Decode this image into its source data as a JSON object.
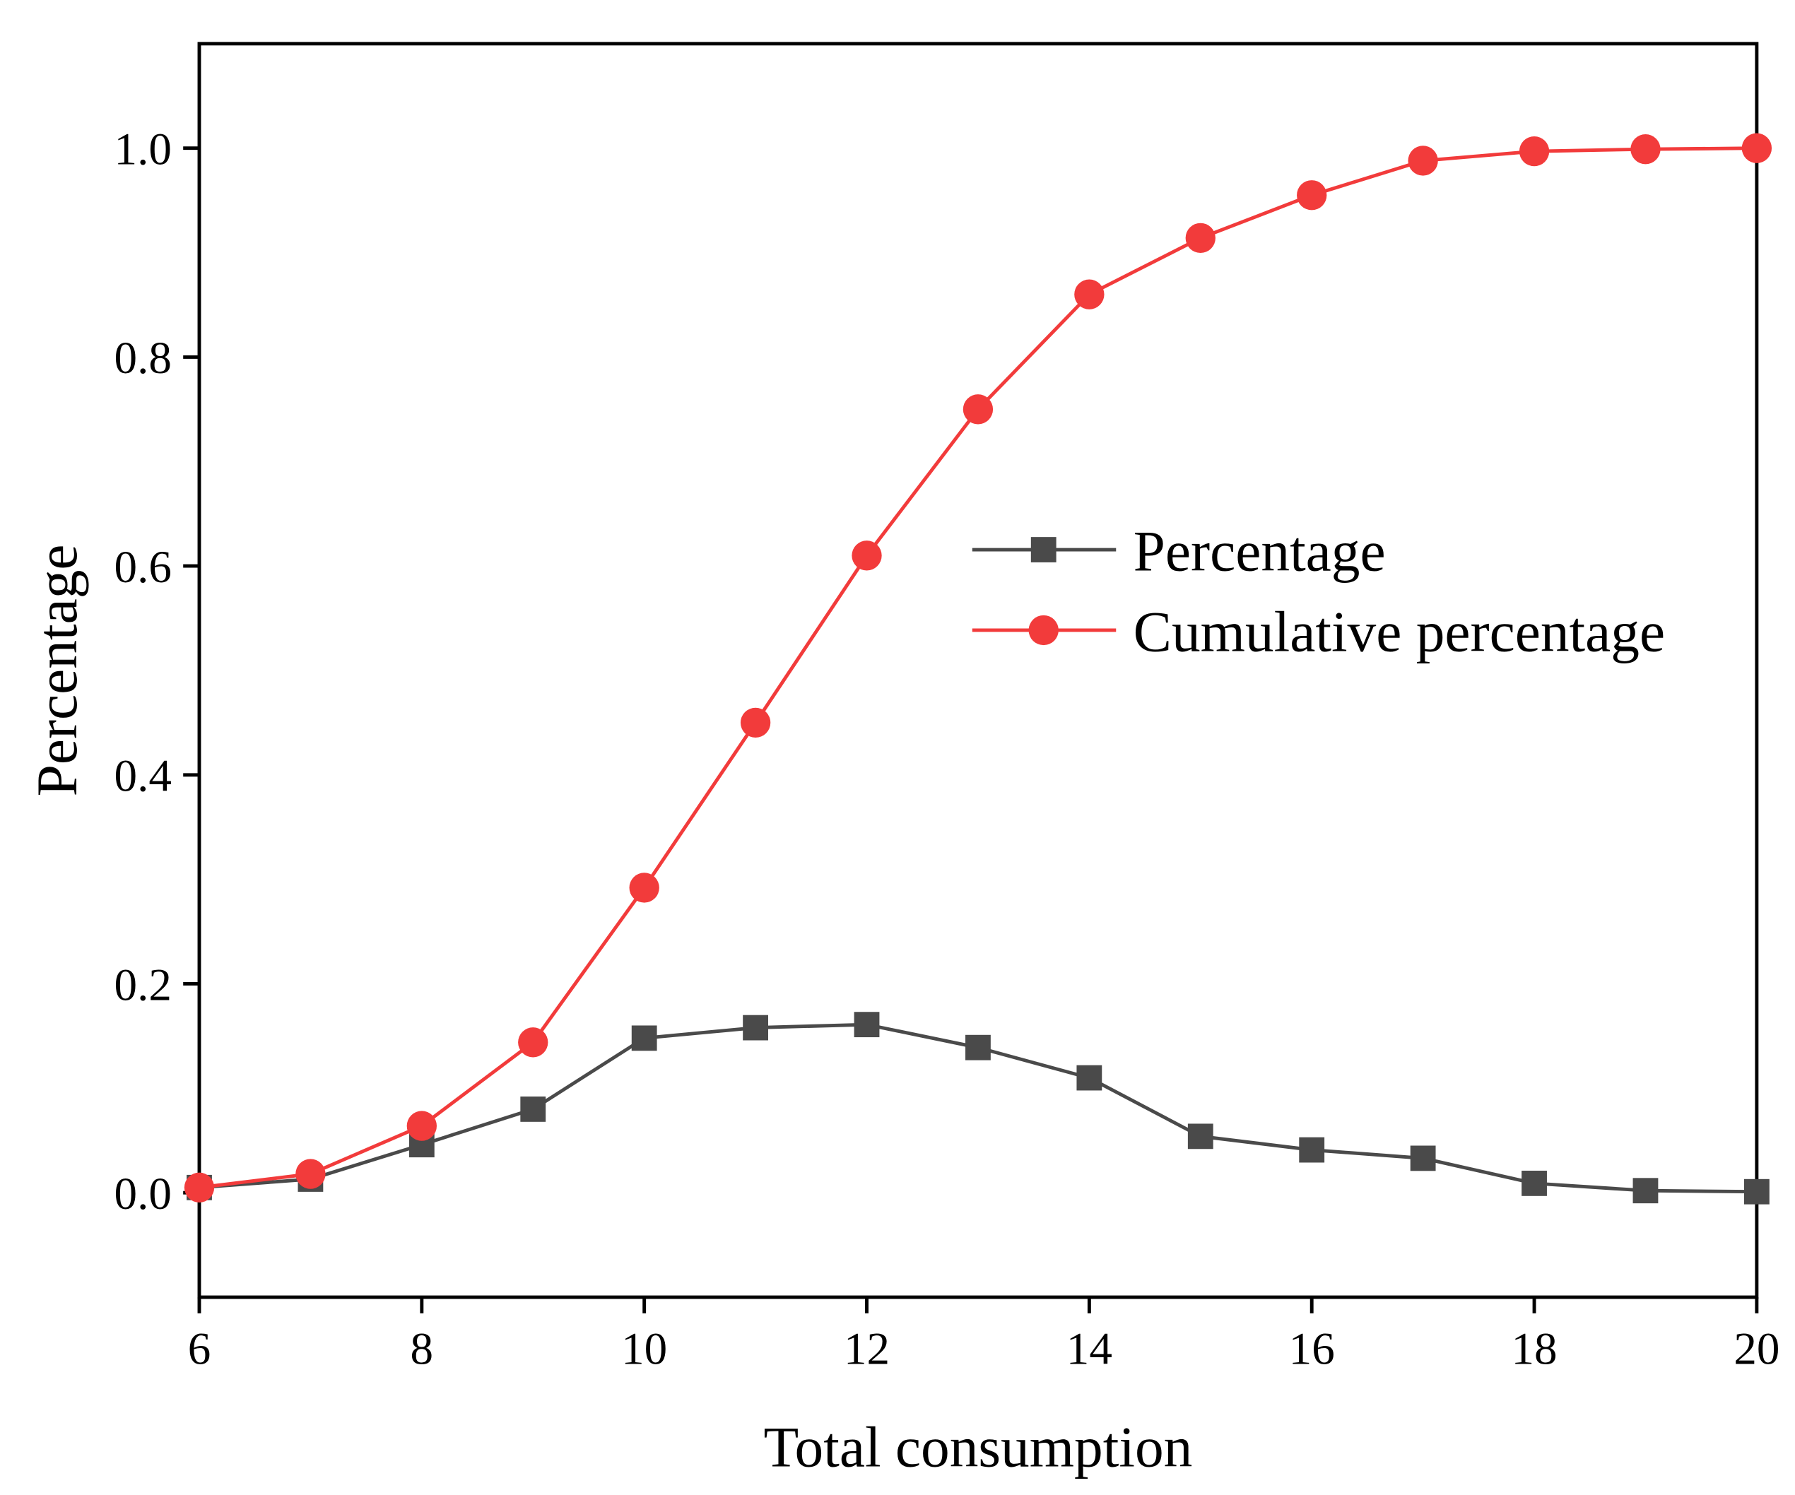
{
  "chart_data": {
    "type": "line",
    "title": "",
    "xlabel": "Total consumption",
    "ylabel": "Percentage",
    "xlim": [
      6,
      20
    ],
    "ylim": [
      -0.1,
      1.1
    ],
    "xticks": [
      "6",
      "8",
      "10",
      "12",
      "14",
      "16",
      "18",
      "20"
    ],
    "yticks": [
      "0.0",
      "0.2",
      "0.4",
      "0.6",
      "0.8",
      "1.0"
    ],
    "grid": false,
    "legend_position": "center-right",
    "x": [
      6,
      7,
      8,
      9,
      10,
      11,
      12,
      13,
      14,
      15,
      16,
      17,
      18,
      19,
      20
    ],
    "series": [
      {
        "name": "Percentage",
        "color": "#4a4a4a",
        "marker": "square",
        "values": [
          0.005,
          0.013,
          0.046,
          0.08,
          0.148,
          0.158,
          0.161,
          0.139,
          0.11,
          0.054,
          0.041,
          0.033,
          0.009,
          0.002,
          0.001
        ]
      },
      {
        "name": "Cumulative percentage",
        "color": "#f23b3b",
        "marker": "circle",
        "values": [
          0.005,
          0.018,
          0.064,
          0.144,
          0.292,
          0.45,
          0.61,
          0.75,
          0.86,
          0.914,
          0.955,
          0.988,
          0.997,
          0.999,
          1.0
        ]
      }
    ]
  }
}
